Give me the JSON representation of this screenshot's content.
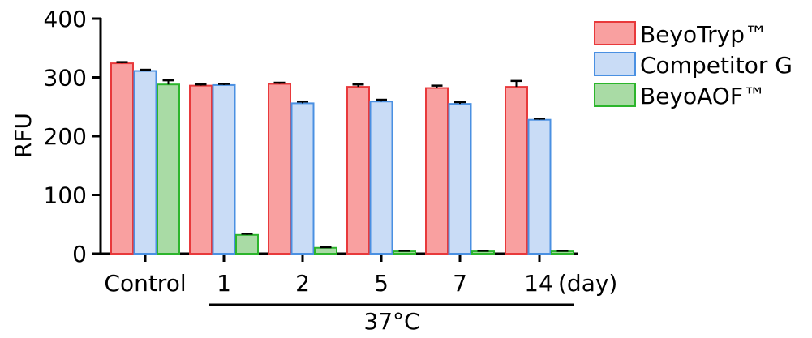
{
  "chart_data": {
    "type": "bar",
    "ylabel": "RFU",
    "ylim": [
      0,
      400
    ],
    "yticks": [
      0,
      100,
      200,
      300,
      400
    ],
    "categories": [
      "Control",
      "1",
      "2",
      "5",
      "7",
      "14"
    ],
    "x_unit_label": "(day)",
    "group_label": "37°C",
    "legend_position": "top-right",
    "series": [
      {
        "name": "BeyoTryp™",
        "fill": "#f9a0a0",
        "stroke": "#e8393b",
        "values": [
          324,
          286,
          289,
          284,
          282,
          284
        ],
        "errors": [
          2,
          2,
          2,
          4,
          4,
          10
        ]
      },
      {
        "name": "Competitor G",
        "fill": "#c9dcf6",
        "stroke": "#4a90e2",
        "values": [
          311,
          287,
          256,
          259,
          255,
          228
        ],
        "errors": [
          2,
          2,
          3,
          3,
          3,
          2
        ]
      },
      {
        "name": "BeyoAOF™",
        "fill": "#a9dba5",
        "stroke": "#2cb52c",
        "values": [
          288,
          32,
          10,
          4,
          4,
          4
        ],
        "errors": [
          7,
          2,
          1,
          1,
          1,
          1
        ]
      }
    ]
  }
}
